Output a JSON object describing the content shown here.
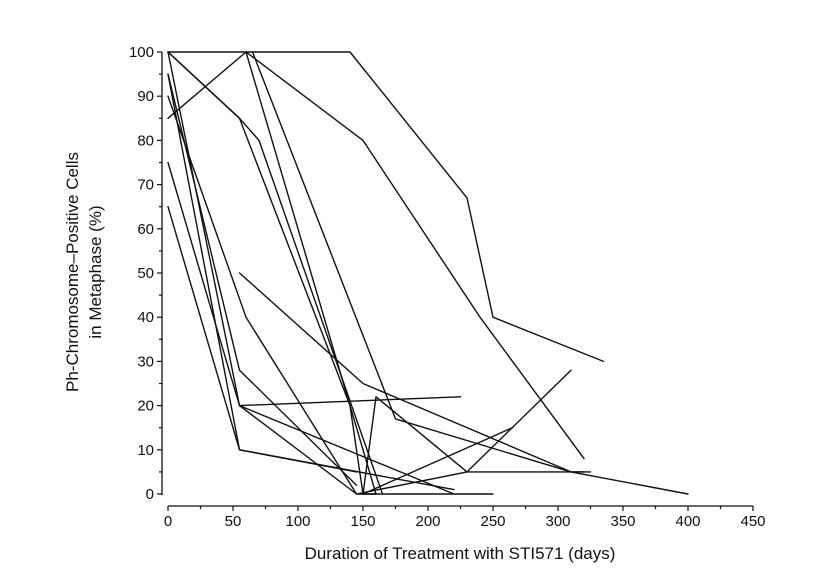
{
  "chart_data": {
    "type": "line",
    "title": "",
    "xlabel": "Duration of Treatment with STI571 (days)",
    "ylabel": [
      "Ph-Chromosome–Positive Cells",
      "in Metaphase (%)"
    ],
    "xlim": [
      0,
      450
    ],
    "ylim": [
      0,
      100
    ],
    "xticks": [
      0,
      50,
      100,
      150,
      200,
      250,
      300,
      350,
      400,
      450
    ],
    "yticks": [
      0,
      10,
      20,
      30,
      40,
      50,
      60,
      70,
      80,
      90,
      100
    ],
    "grid": false,
    "legend": "none",
    "line_color": "#111111",
    "series": [
      {
        "x": [
          0,
          140,
          230,
          250,
          335
        ],
        "y": [
          100,
          100,
          67,
          40,
          30
        ]
      },
      {
        "x": [
          0,
          60,
          150,
          240,
          320
        ],
        "y": [
          85,
          100,
          80,
          40,
          8
        ]
      },
      {
        "x": [
          0,
          55,
          70,
          165
        ],
        "y": [
          100,
          85,
          80,
          0
        ]
      },
      {
        "x": [
          60,
          140,
          160
        ],
        "y": [
          100,
          20,
          0
        ]
      },
      {
        "x": [
          65,
          175,
          310,
          400
        ],
        "y": [
          100,
          17,
          5,
          0
        ]
      },
      {
        "x": [
          0,
          55,
          140,
          150,
          220,
          250
        ],
        "y": [
          100,
          85,
          20,
          0,
          0,
          0
        ]
      },
      {
        "x": [
          0,
          60,
          145
        ],
        "y": [
          90,
          40,
          0
        ]
      },
      {
        "x": [
          0,
          55,
          145,
          160
        ],
        "y": [
          75,
          20,
          0,
          0
        ]
      },
      {
        "x": [
          0,
          55,
          145
        ],
        "y": [
          95,
          28,
          2
        ]
      },
      {
        "x": [
          0,
          55,
          145
        ],
        "y": [
          65,
          10,
          5
        ]
      },
      {
        "x": [
          0,
          55,
          220
        ],
        "y": [
          100,
          20,
          0
        ]
      },
      {
        "x": [
          0,
          55,
          220
        ],
        "y": [
          95,
          10,
          1
        ]
      },
      {
        "x": [
          55,
          225
        ],
        "y": [
          20,
          22
        ]
      },
      {
        "x": [
          55,
          150,
          310,
          320
        ],
        "y": [
          50,
          25,
          5,
          5
        ]
      },
      {
        "x": [
          145,
          230,
          310
        ],
        "y": [
          0,
          5,
          28
        ]
      },
      {
        "x": [
          150,
          265
        ],
        "y": [
          0,
          15
        ]
      },
      {
        "x": [
          150,
          160,
          230,
          325
        ],
        "y": [
          0,
          22,
          5,
          5
        ]
      }
    ]
  }
}
